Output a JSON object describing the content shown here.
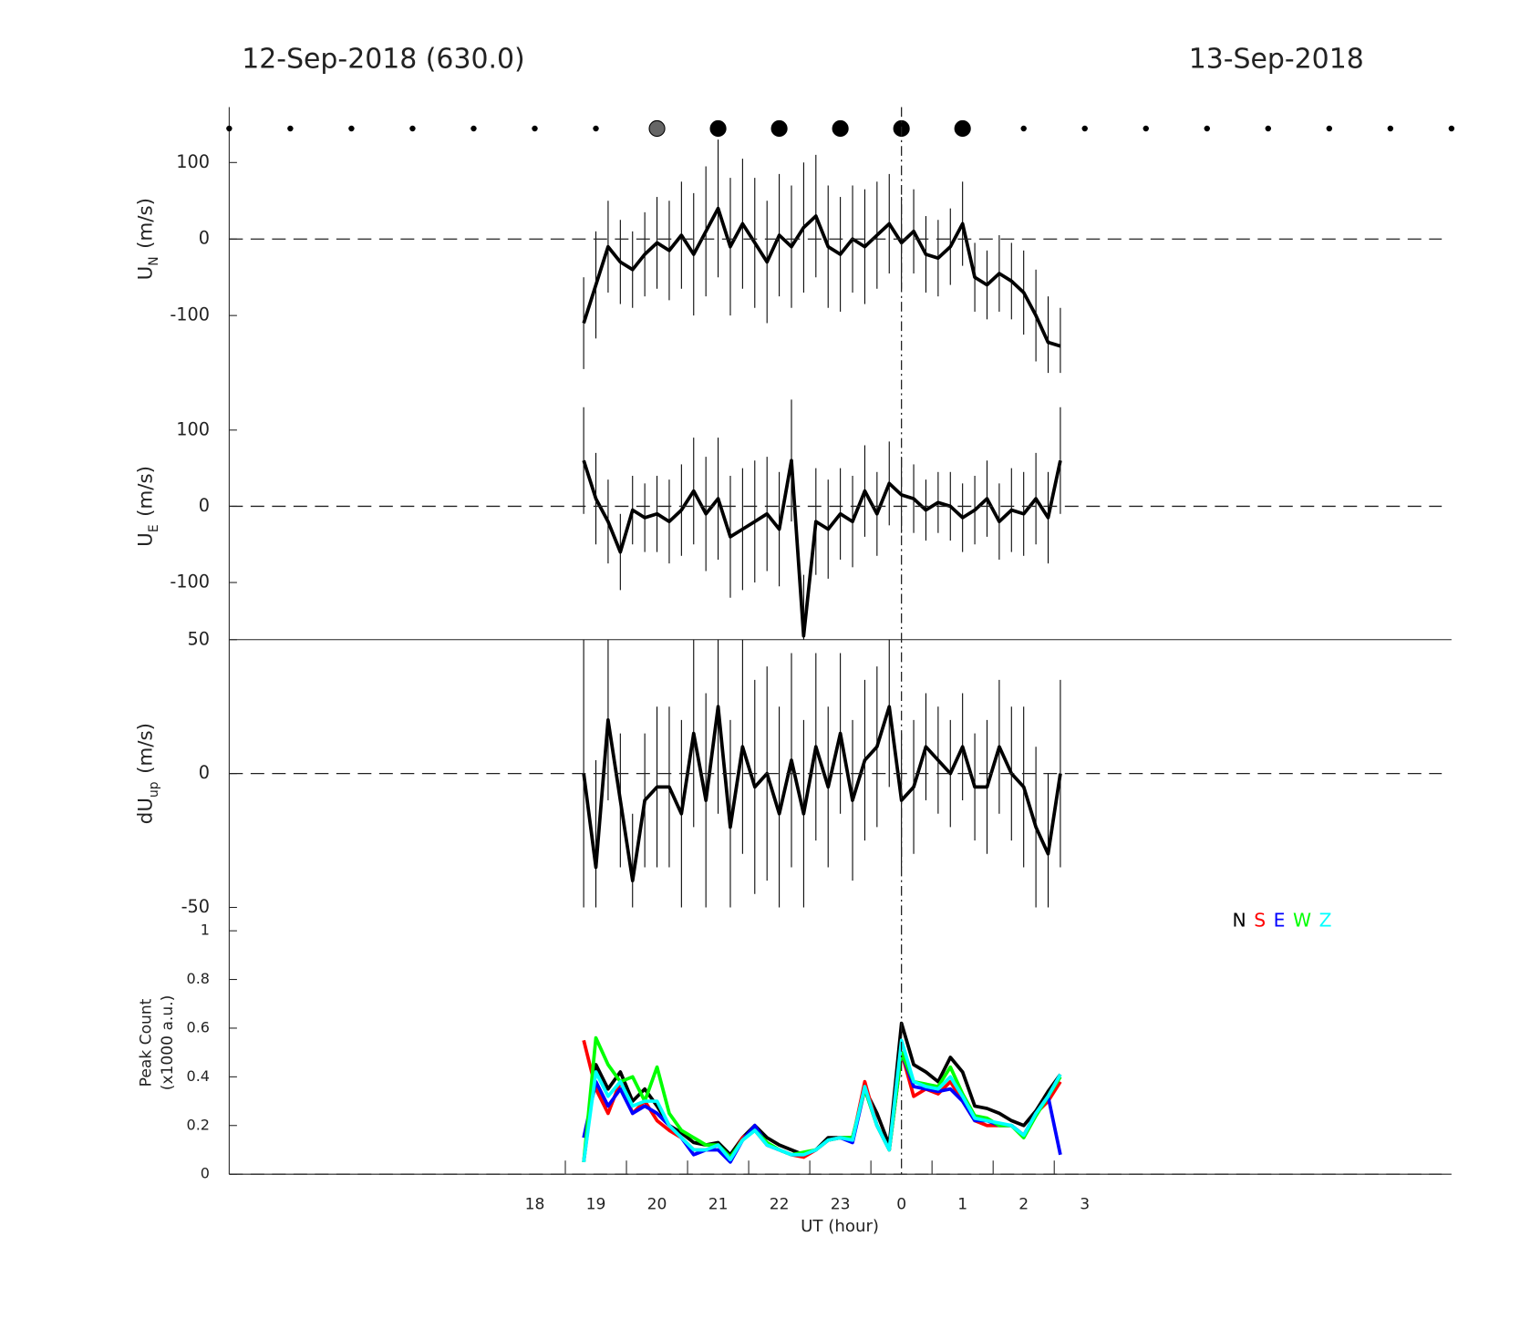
{
  "figure": {
    "title_left": "12-Sep-2018 (630.0)",
    "title_right": "13-Sep-2018",
    "xlabel": "UT (hour)",
    "xlim": [
      13,
      33
    ],
    "xticks": [
      18,
      19,
      20,
      21,
      22,
      23,
      {
        "value": 24,
        "label": "0"
      },
      {
        "value": 25,
        "label": "1"
      },
      {
        "value": 26,
        "label": "2"
      },
      {
        "value": 27,
        "label": "3"
      }
    ],
    "xminor_ticks": [
      18.5,
      19.5,
      20.5,
      21.5,
      22.5,
      23.5,
      24.5,
      25.5,
      26.5
    ],
    "vline": 24,
    "sky_markers": {
      "x": [
        13,
        14,
        15,
        16,
        17,
        18,
        19,
        20,
        21,
        22,
        23,
        24,
        25,
        26,
        27,
        28,
        29,
        30,
        31,
        32,
        33
      ],
      "sizes": [
        2.5,
        2.5,
        2.5,
        2.5,
        2.5,
        2.5,
        2.5,
        8,
        8,
        8,
        8,
        8,
        8,
        2.5,
        2.5,
        2.5,
        2.5,
        2.5,
        2.5,
        2.5,
        2.5
      ],
      "colors": [
        "#000",
        "#000",
        "#000",
        "#000",
        "#000",
        "#000",
        "#000",
        "#666",
        "#000",
        "#000",
        "#000",
        "#000",
        "#000",
        "#000",
        "#000",
        "#000",
        "#000",
        "#000",
        "#000",
        "#000",
        "#000"
      ]
    },
    "x": [
      18.8,
      19.0,
      19.2,
      19.4,
      19.6,
      19.8,
      20.0,
      20.2,
      20.4,
      20.6,
      20.8,
      21.0,
      21.2,
      21.4,
      21.6,
      21.8,
      22.0,
      22.2,
      22.4,
      22.6,
      22.8,
      23.0,
      23.2,
      23.4,
      23.6,
      23.8,
      24.0,
      24.2,
      24.4,
      24.6,
      24.8,
      25.0,
      25.2,
      25.4,
      25.6,
      25.8,
      26.0,
      26.2,
      26.4,
      26.6
    ]
  },
  "chart_data": [
    {
      "type": "errorbar",
      "ylabel": {
        "main": "U",
        "sub": "N",
        "unit": "(m/s)"
      },
      "ylim": [
        -175,
        175
      ],
      "yticks": [
        -100,
        0,
        100
      ],
      "hline": 0,
      "color": "#000",
      "values": [
        -110,
        -60,
        -10,
        -30,
        -40,
        -20,
        -5,
        -15,
        5,
        -20,
        10,
        40,
        -10,
        20,
        -5,
        -30,
        5,
        -10,
        15,
        30,
        -10,
        -20,
        0,
        -10,
        5,
        20,
        -5,
        10,
        -20,
        -25,
        -10,
        20,
        -50,
        -60,
        -45,
        -55,
        -70,
        -100,
        -135,
        -140
      ],
      "errors": [
        60,
        70,
        60,
        55,
        50,
        55,
        60,
        65,
        70,
        80,
        85,
        90,
        90,
        85,
        85,
        80,
        80,
        80,
        85,
        80,
        80,
        75,
        70,
        75,
        70,
        65,
        60,
        55,
        50,
        50,
        50,
        55,
        45,
        45,
        50,
        50,
        55,
        60,
        60,
        50
      ]
    },
    {
      "type": "errorbar",
      "ylabel": {
        "main": "U",
        "sub": "E",
        "unit": "(m/s)"
      },
      "ylim": [
        -175,
        175
      ],
      "yticks": [
        -100,
        0,
        100
      ],
      "hline": 0,
      "color": "#000",
      "values": [
        60,
        10,
        -20,
        -60,
        -5,
        -15,
        -10,
        -20,
        -5,
        20,
        -10,
        10,
        -40,
        -30,
        -20,
        -10,
        -30,
        60,
        -170,
        -20,
        -30,
        -10,
        -20,
        20,
        -10,
        30,
        15,
        10,
        -5,
        5,
        0,
        -15,
        -5,
        10,
        -20,
        -5,
        -10,
        10,
        -15,
        60
      ],
      "errors": [
        70,
        60,
        55,
        50,
        45,
        45,
        50,
        55,
        60,
        70,
        75,
        80,
        80,
        80,
        80,
        75,
        75,
        80,
        80,
        70,
        65,
        60,
        60,
        60,
        55,
        55,
        50,
        45,
        40,
        40,
        45,
        45,
        45,
        50,
        50,
        55,
        55,
        60,
        60,
        70
      ]
    },
    {
      "type": "errorbar",
      "ylabel": {
        "main": "dU",
        "sub": "up",
        "unit": "(m/s)"
      },
      "ylim": [
        -50,
        50
      ],
      "yticks": [
        -50,
        0,
        50
      ],
      "hline": 0,
      "color": "#000",
      "values": [
        0,
        -35,
        20,
        -10,
        -40,
        -10,
        -5,
        -5,
        -15,
        15,
        -10,
        25,
        -20,
        10,
        -5,
        0,
        -15,
        5,
        -15,
        10,
        -5,
        15,
        -10,
        5,
        10,
        25,
        -10,
        -5,
        10,
        5,
        0,
        10,
        -5,
        -5,
        10,
        0,
        -5,
        -20,
        -30,
        0
      ],
      "errors": [
        50,
        40,
        30,
        25,
        25,
        25,
        30,
        30,
        35,
        35,
        40,
        40,
        40,
        40,
        40,
        40,
        40,
        40,
        35,
        35,
        30,
        30,
        30,
        30,
        30,
        30,
        25,
        25,
        20,
        20,
        20,
        20,
        20,
        25,
        25,
        25,
        30,
        30,
        30,
        35
      ]
    },
    {
      "type": "line",
      "ylabel": {
        "line1": "Peak Count",
        "line2": "(x1000 a.u.)"
      },
      "ylim": [
        0,
        1
      ],
      "yticks": [
        0,
        0.2,
        0.4,
        0.6,
        0.8,
        1
      ],
      "hline": 0,
      "series": [
        {
          "name": "N",
          "color": "#000000",
          "values": [
            0.05,
            0.45,
            0.35,
            0.42,
            0.3,
            0.35,
            0.28,
            0.2,
            0.17,
            0.13,
            0.12,
            0.13,
            0.08,
            0.15,
            0.2,
            0.15,
            0.12,
            0.1,
            0.08,
            0.1,
            0.15,
            0.15,
            0.15,
            0.35,
            0.25,
            0.12,
            0.62,
            0.45,
            0.42,
            0.38,
            0.48,
            0.42,
            0.28,
            0.27,
            0.25,
            0.22,
            0.2,
            0.26,
            0.34,
            0.41
          ]
        },
        {
          "name": "S",
          "color": "#ff0000",
          "values": [
            0.55,
            0.35,
            0.25,
            0.38,
            0.25,
            0.3,
            0.22,
            0.18,
            0.15,
            0.1,
            0.1,
            0.12,
            0.06,
            0.15,
            0.18,
            0.12,
            0.1,
            0.08,
            0.07,
            0.1,
            0.14,
            0.15,
            0.14,
            0.38,
            0.2,
            0.1,
            0.5,
            0.32,
            0.35,
            0.33,
            0.38,
            0.3,
            0.22,
            0.2,
            0.2,
            0.2,
            0.16,
            0.25,
            0.3,
            0.38
          ]
        },
        {
          "name": "E",
          "color": "#0000ff",
          "values": [
            0.15,
            0.38,
            0.28,
            0.35,
            0.25,
            0.28,
            0.25,
            0.2,
            0.15,
            0.08,
            0.1,
            0.1,
            0.05,
            0.14,
            0.2,
            0.12,
            0.1,
            0.08,
            0.08,
            0.1,
            0.14,
            0.15,
            0.13,
            0.35,
            0.2,
            0.1,
            0.5,
            0.36,
            0.35,
            0.34,
            0.35,
            0.3,
            0.22,
            0.22,
            0.2,
            0.2,
            0.16,
            0.25,
            0.32,
            0.08
          ]
        },
        {
          "name": "W",
          "color": "#00ff00",
          "values": [
            0.05,
            0.56,
            0.45,
            0.38,
            0.4,
            0.3,
            0.44,
            0.25,
            0.18,
            0.15,
            0.12,
            0.12,
            0.07,
            0.14,
            0.18,
            0.13,
            0.1,
            0.08,
            0.09,
            0.1,
            0.14,
            0.15,
            0.15,
            0.35,
            0.2,
            0.1,
            0.5,
            0.38,
            0.37,
            0.36,
            0.44,
            0.33,
            0.24,
            0.23,
            0.2,
            0.2,
            0.15,
            0.24,
            0.32,
            0.4
          ]
        },
        {
          "name": "Z",
          "color": "#00ffff",
          "values": [
            0.05,
            0.42,
            0.32,
            0.38,
            0.28,
            0.3,
            0.3,
            0.2,
            0.15,
            0.1,
            0.1,
            0.12,
            0.06,
            0.14,
            0.18,
            0.12,
            0.1,
            0.08,
            0.08,
            0.1,
            0.14,
            0.15,
            0.14,
            0.36,
            0.2,
            0.1,
            0.55,
            0.38,
            0.36,
            0.35,
            0.4,
            0.32,
            0.23,
            0.22,
            0.21,
            0.2,
            0.16,
            0.25,
            0.32,
            0.41
          ]
        }
      ]
    }
  ]
}
